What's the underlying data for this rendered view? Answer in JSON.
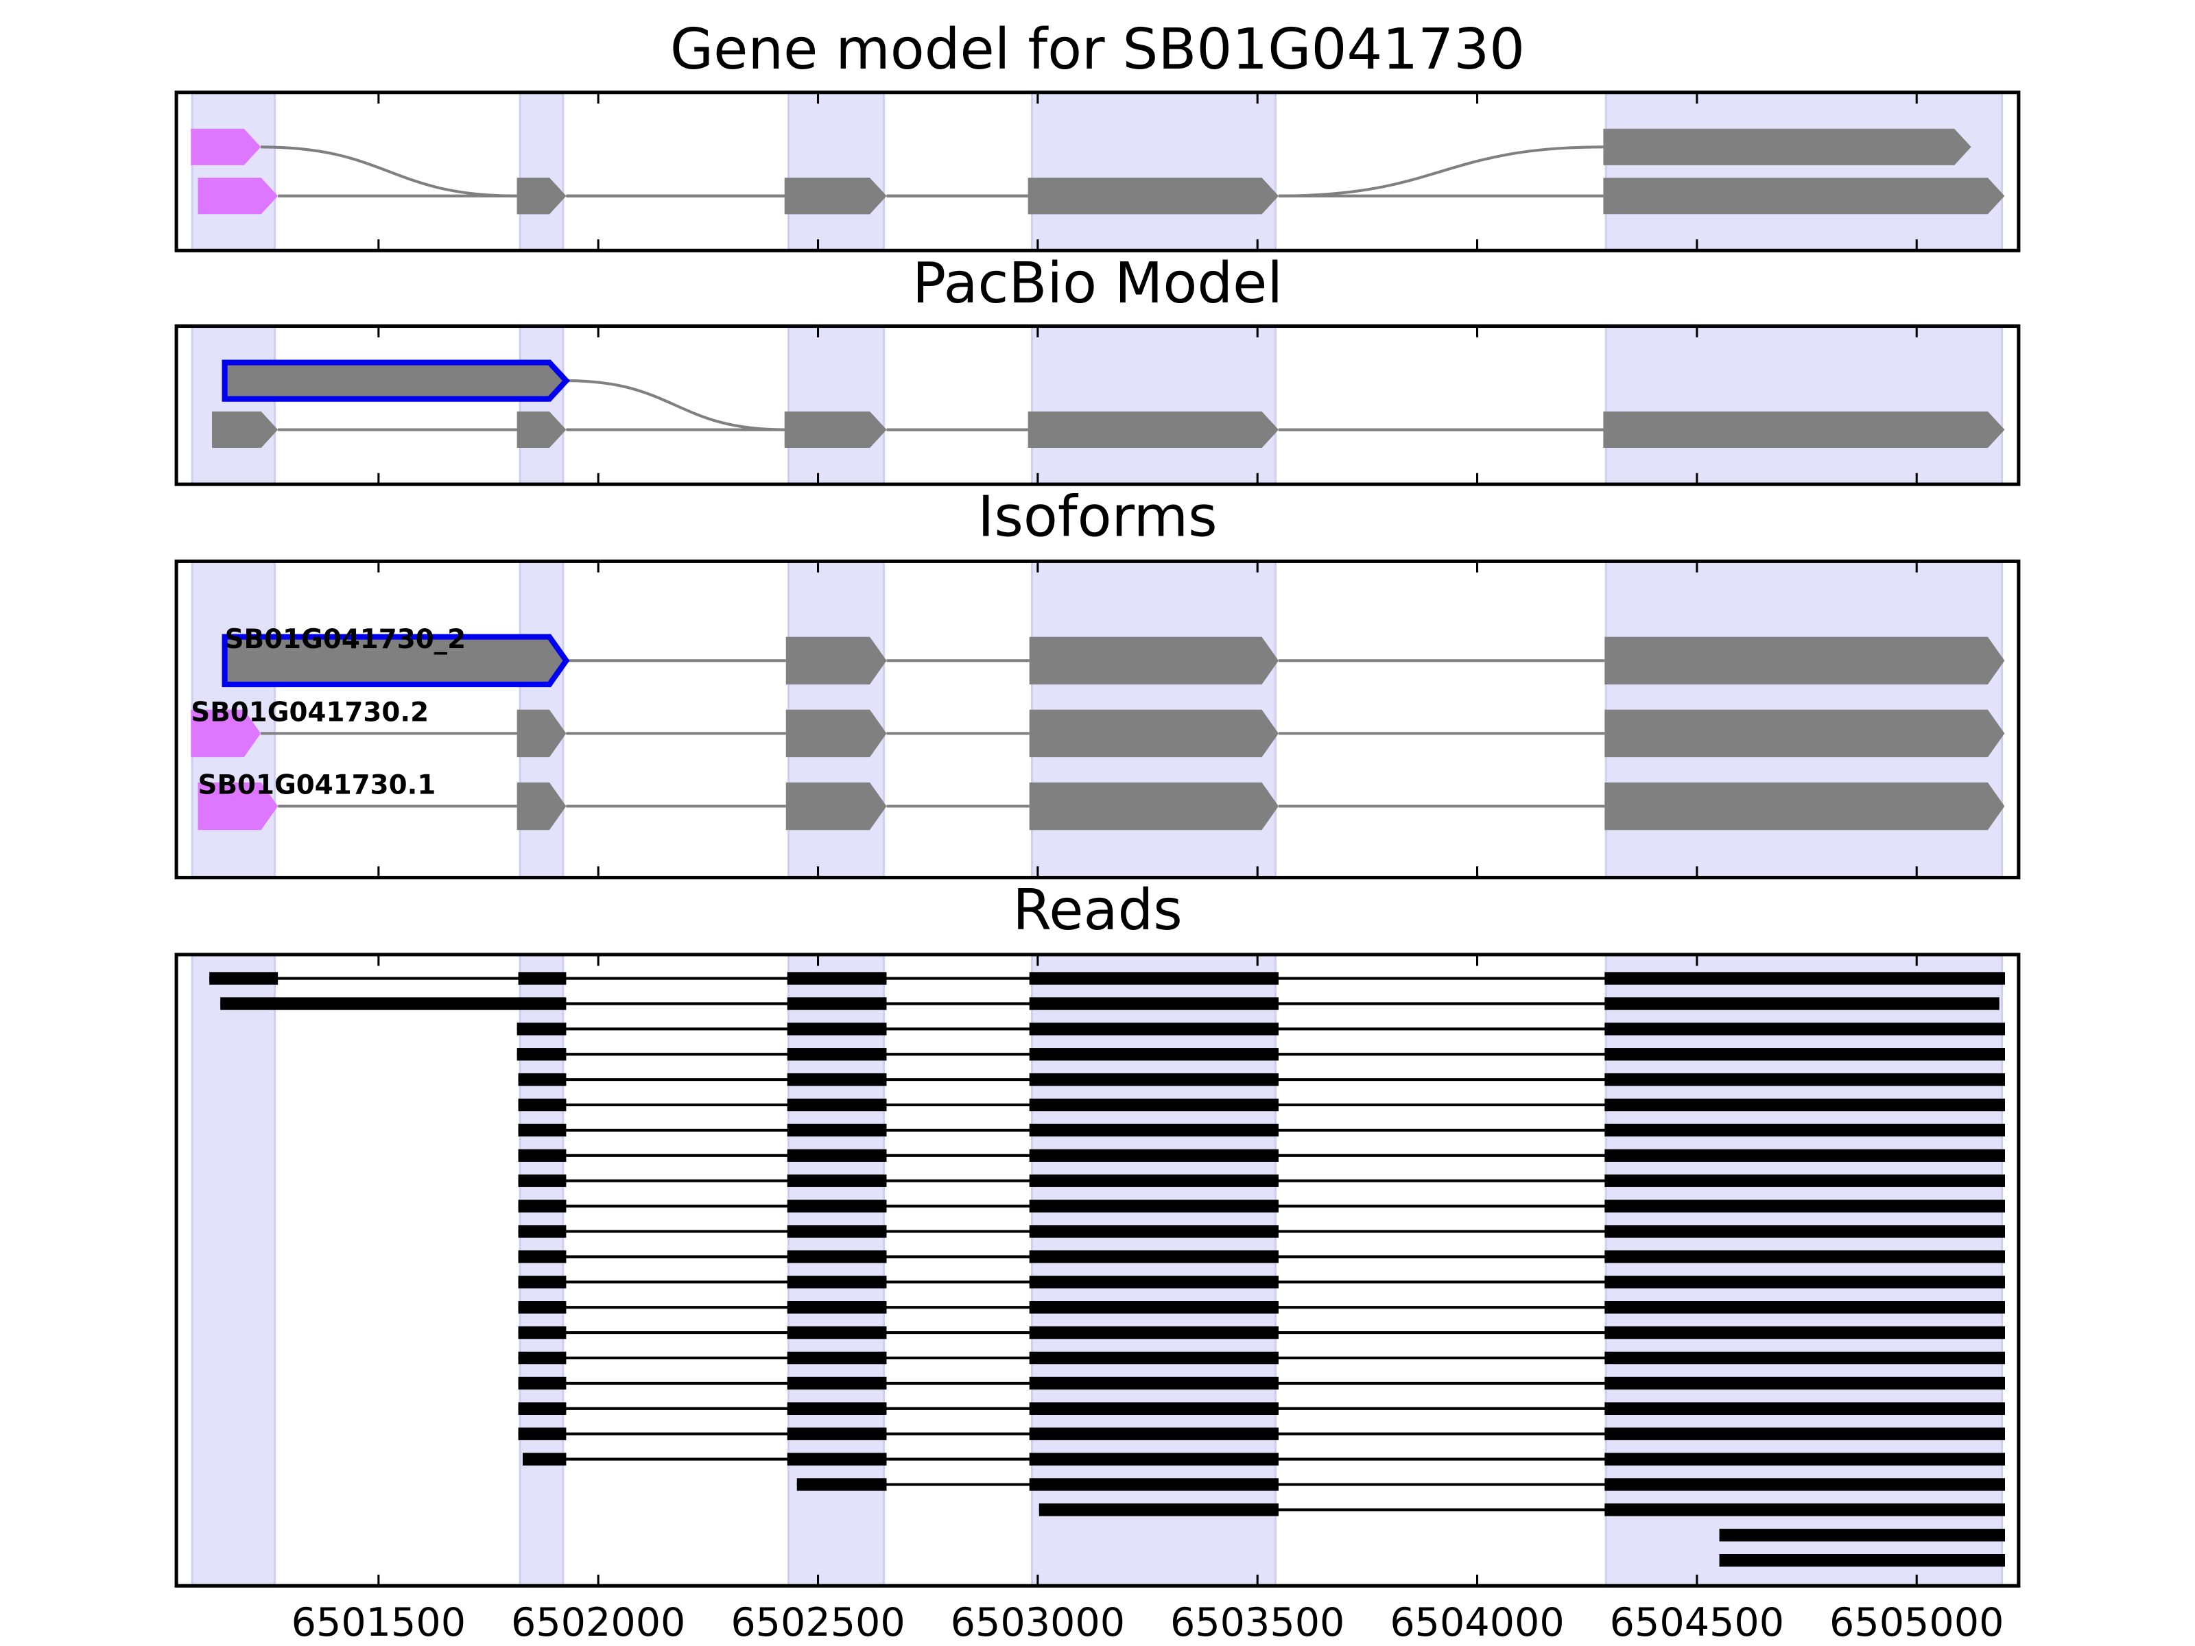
{
  "chart_data": {
    "type": "gene-track",
    "xlim": [
      6501040,
      6505232
    ],
    "xticks": [
      6501500,
      6502000,
      6502500,
      6503000,
      6503500,
      6504000,
      6504500,
      6505000
    ],
    "exon_color": "#808080",
    "region_color": "#e2e2fb",
    "read_color": "#000000",
    "regions": [
      [
        6501076,
        6501264
      ],
      [
        6501822,
        6501920
      ],
      [
        6502433,
        6502650
      ],
      [
        6502987,
        6503541
      ],
      [
        6504293,
        6505194
      ]
    ],
    "panels": [
      {
        "title": "Gene model for SB01G041730",
        "tracks": [
          {
            "exons": [
              {
                "start": 6501073,
                "end": 6501232,
                "row": 0,
                "color": "#dd77ff"
              },
              {
                "start": 6501815,
                "end": 6501927,
                "row": 1
              },
              {
                "start": 6502424,
                "end": 6502656,
                "row": 1
              },
              {
                "start": 6502978,
                "end": 6503548,
                "row": 1
              },
              {
                "start": 6504287,
                "end": 6505124,
                "row": 0
              }
            ]
          },
          {
            "exons": [
              {
                "start": 6501089,
                "end": 6501271,
                "row": 1,
                "color": "#dd77ff"
              },
              {
                "start": 6501815,
                "end": 6501927,
                "row": 1
              },
              {
                "start": 6502424,
                "end": 6502656,
                "row": 1
              },
              {
                "start": 6502978,
                "end": 6503548,
                "row": 1
              },
              {
                "start": 6504287,
                "end": 6505200,
                "row": 1
              }
            ]
          }
        ]
      },
      {
        "title": "PacBio Model",
        "tracks": [
          {
            "exons": [
              {
                "start": 6501150,
                "end": 6501927,
                "row": 0,
                "edge": "#0000ee"
              },
              {
                "start": 6502424,
                "end": 6502656,
                "row": 1
              },
              {
                "start": 6502978,
                "end": 6503548,
                "row": 1
              },
              {
                "start": 6504287,
                "end": 6505200,
                "row": 1
              }
            ]
          },
          {
            "exons": [
              {
                "start": 6501121,
                "end": 6501271,
                "row": 1
              },
              {
                "start": 6501815,
                "end": 6501927,
                "row": 1
              },
              {
                "start": 6502424,
                "end": 6502656,
                "row": 1
              },
              {
                "start": 6502978,
                "end": 6503548,
                "row": 1
              },
              {
                "start": 6504287,
                "end": 6505200,
                "row": 1
              }
            ]
          }
        ]
      },
      {
        "title": "Isoforms",
        "tracks": [
          {
            "label": "SB01G041730_2",
            "exons": [
              {
                "start": 6501150,
                "end": 6501927,
                "edge": "#0000ee"
              },
              {
                "start": 6502427,
                "end": 6502656
              },
              {
                "start": 6502981,
                "end": 6503548
              },
              {
                "start": 6504290,
                "end": 6505200
              }
            ]
          },
          {
            "label": "SB01G041730.2",
            "exons": [
              {
                "start": 6501073,
                "end": 6501232,
                "color": "#dd77ff"
              },
              {
                "start": 6501815,
                "end": 6501927
              },
              {
                "start": 6502427,
                "end": 6502656
              },
              {
                "start": 6502981,
                "end": 6503548
              },
              {
                "start": 6504290,
                "end": 6505200
              }
            ]
          },
          {
            "label": "SB01G041730.1",
            "exons": [
              {
                "start": 6501089,
                "end": 6501271,
                "color": "#dd77ff"
              },
              {
                "start": 6501815,
                "end": 6501927
              },
              {
                "start": 6502427,
                "end": 6502656
              },
              {
                "start": 6502981,
                "end": 6503548
              },
              {
                "start": 6504290,
                "end": 6505200
              }
            ]
          }
        ]
      },
      {
        "title": "Reads",
        "reads": [
          [
            [
              6501115,
              6501271
            ],
            [
              6501818,
              6501927
            ],
            [
              6502430,
              6502656
            ],
            [
              6502981,
              6503548
            ],
            [
              6504290,
              6505201
            ]
          ],
          [
            [
              6501140,
              6501927
            ],
            [
              6502430,
              6502656
            ],
            [
              6502981,
              6503548
            ],
            [
              6504290,
              6505188
            ]
          ],
          [
            [
              6501815,
              6501927
            ],
            [
              6502430,
              6502656
            ],
            [
              6502981,
              6503548
            ],
            [
              6504290,
              6505201
            ]
          ],
          [
            [
              6501815,
              6501927
            ],
            [
              6502430,
              6502656
            ],
            [
              6502981,
              6503548
            ],
            [
              6504290,
              6505201
            ]
          ],
          [
            [
              6501818,
              6501927
            ],
            [
              6502430,
              6502656
            ],
            [
              6502981,
              6503548
            ],
            [
              6504290,
              6505201
            ]
          ],
          [
            [
              6501818,
              6501927
            ],
            [
              6502430,
              6502656
            ],
            [
              6502981,
              6503548
            ],
            [
              6504290,
              6505201
            ]
          ],
          [
            [
              6501818,
              6501927
            ],
            [
              6502430,
              6502656
            ],
            [
              6502981,
              6503548
            ],
            [
              6504290,
              6505201
            ]
          ],
          [
            [
              6501818,
              6501927
            ],
            [
              6502430,
              6502656
            ],
            [
              6502981,
              6503548
            ],
            [
              6504290,
              6505201
            ]
          ],
          [
            [
              6501818,
              6501927
            ],
            [
              6502430,
              6502656
            ],
            [
              6502981,
              6503548
            ],
            [
              6504290,
              6505201
            ]
          ],
          [
            [
              6501818,
              6501927
            ],
            [
              6502430,
              6502656
            ],
            [
              6502981,
              6503548
            ],
            [
              6504290,
              6505201
            ]
          ],
          [
            [
              6501818,
              6501927
            ],
            [
              6502430,
              6502656
            ],
            [
              6502981,
              6503548
            ],
            [
              6504290,
              6505201
            ]
          ],
          [
            [
              6501818,
              6501927
            ],
            [
              6502430,
              6502656
            ],
            [
              6502981,
              6503548
            ],
            [
              6504290,
              6505201
            ]
          ],
          [
            [
              6501818,
              6501927
            ],
            [
              6502430,
              6502656
            ],
            [
              6502981,
              6503548
            ],
            [
              6504290,
              6505201
            ]
          ],
          [
            [
              6501818,
              6501927
            ],
            [
              6502430,
              6502656
            ],
            [
              6502981,
              6503548
            ],
            [
              6504290,
              6505201
            ]
          ],
          [
            [
              6501818,
              6501927
            ],
            [
              6502430,
              6502656
            ],
            [
              6502981,
              6503548
            ],
            [
              6504290,
              6505201
            ]
          ],
          [
            [
              6501818,
              6501927
            ],
            [
              6502430,
              6502656
            ],
            [
              6502981,
              6503548
            ],
            [
              6504290,
              6505201
            ]
          ],
          [
            [
              6501818,
              6501927
            ],
            [
              6502430,
              6502656
            ],
            [
              6502981,
              6503548
            ],
            [
              6504290,
              6505201
            ]
          ],
          [
            [
              6501818,
              6501927
            ],
            [
              6502430,
              6502656
            ],
            [
              6502981,
              6503548
            ],
            [
              6504290,
              6505201
            ]
          ],
          [
            [
              6501818,
              6501927
            ],
            [
              6502430,
              6502656
            ],
            [
              6502981,
              6503548
            ],
            [
              6504290,
              6505201
            ]
          ],
          [
            [
              6501828,
              6501927
            ],
            [
              6502430,
              6502656
            ],
            [
              6502981,
              6503548
            ],
            [
              6504290,
              6505201
            ]
          ],
          [
            [
              6502452,
              6502656
            ],
            [
              6502981,
              6503548
            ],
            [
              6504290,
              6505201
            ]
          ],
          [
            [
              6503003,
              6503548
            ],
            [
              6504290,
              6505201
            ]
          ],
          [
            [
              6504551,
              6505201
            ]
          ],
          [
            [
              6504551,
              6505201
            ]
          ]
        ]
      }
    ]
  }
}
